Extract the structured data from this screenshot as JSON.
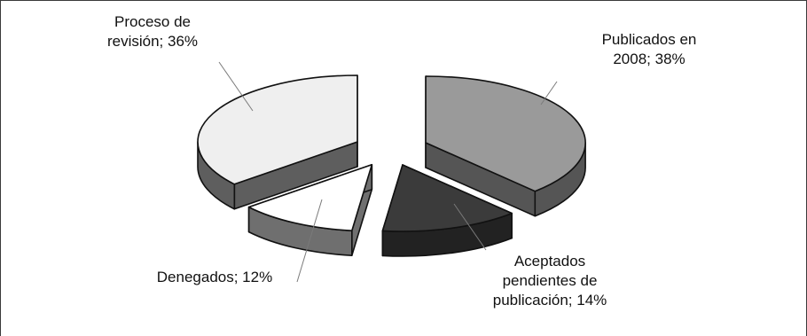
{
  "chart_data": {
    "type": "pie",
    "title": "",
    "style": "3d-exploded",
    "slices": [
      {
        "label": "Publicados en 2008; 38%",
        "value": 38,
        "lines": [
          "Publicados en",
          "2008; 38%"
        ],
        "color": "#9a9a9a"
      },
      {
        "label": "Aceptados pendientes de publicación; 14%",
        "value": 14,
        "lines": [
          "Aceptados",
          "pendientes de",
          "publicación; 14%"
        ],
        "color": "#3b3b3b"
      },
      {
        "label": "Denegados; 12%",
        "value": 12,
        "lines": [
          "Denegados; 12%"
        ],
        "color": "#ffffff"
      },
      {
        "label": "Proceso de revisión; 36%",
        "value": 36,
        "lines": [
          "Proceso de",
          "revisión; 36%"
        ],
        "color": "#efefef"
      }
    ]
  }
}
